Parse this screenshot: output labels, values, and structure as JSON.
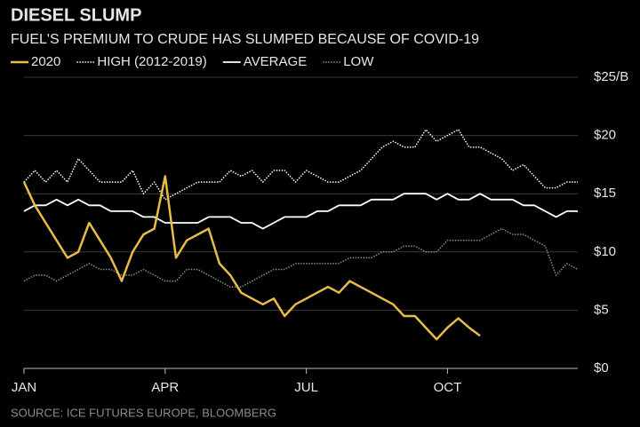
{
  "chart_data": {
    "type": "line",
    "title": "DIESEL SLUMP",
    "subtitle": "FUEL'S PREMIUM  TO CRUDE HAS SLUMPED BECAUSE OF COVID-19",
    "source": "SOURCE: ICE FUTURES EUROPE, BLOOMBERG",
    "categories": [
      "JAN",
      null,
      null,
      null,
      null,
      null,
      null,
      null,
      null,
      null,
      null,
      null,
      null,
      "APR",
      null,
      null,
      null,
      null,
      null,
      null,
      null,
      null,
      null,
      null,
      null,
      null,
      "JUL",
      null,
      null,
      null,
      null,
      null,
      null,
      null,
      null,
      null,
      null,
      null,
      null,
      "OCT",
      null,
      null,
      null,
      null,
      null,
      null,
      null,
      null,
      null,
      null,
      null,
      null
    ],
    "series": [
      {
        "name": "2020",
        "color": "#e8bb4a",
        "style": "solid",
        "width": 2.5,
        "values": [
          16,
          14,
          12.5,
          11,
          9.5,
          10,
          12.5,
          11,
          9.5,
          7.5,
          10,
          11.5,
          12,
          16.5,
          9.5,
          11,
          11.5,
          12,
          9,
          8,
          6.5,
          6,
          5.5,
          6,
          4.5,
          5.5,
          6,
          6.5,
          7,
          6.5,
          7.5,
          7,
          6.5,
          6,
          5.5,
          4.5,
          4.5,
          3.5,
          2.5,
          3.5,
          4.3,
          3.5,
          2.8,
          null,
          null,
          null,
          null,
          null,
          null,
          null,
          null,
          null
        ]
      },
      {
        "name": "HIGH (2012-2019)",
        "color": "#ffffff",
        "style": "dotted",
        "width": 1.5,
        "values": [
          16,
          17,
          16,
          17,
          16,
          18,
          17,
          16,
          16,
          16,
          17,
          15,
          16,
          14.5,
          15,
          15.5,
          16,
          16,
          16,
          17,
          16.5,
          17,
          16,
          17,
          17,
          16,
          17,
          16.5,
          16,
          16,
          16.5,
          17,
          18,
          19,
          19.5,
          19,
          19,
          20.5,
          19.5,
          20,
          20.5,
          19,
          19,
          18.5,
          18,
          17,
          17.5,
          16.5,
          15.5,
          15.5,
          16,
          16
        ]
      },
      {
        "name": "AVERAGE",
        "color": "#ffffff",
        "style": "solid",
        "width": 1.8,
        "values": [
          13.5,
          14,
          14,
          14.5,
          14,
          14.5,
          14,
          14,
          13.5,
          13.5,
          13.5,
          13,
          13,
          12.5,
          12.5,
          12.5,
          12.5,
          13,
          13,
          13,
          12.5,
          12.5,
          12,
          12.5,
          13,
          13,
          13,
          13.5,
          13.5,
          14,
          14,
          14,
          14.5,
          14.5,
          14.5,
          15,
          15,
          15,
          14.5,
          15,
          14.5,
          14.5,
          15,
          14.5,
          14.5,
          14.5,
          14,
          14,
          13.5,
          13,
          13.5,
          13.5
        ]
      },
      {
        "name": "LOW",
        "color": "#8c8c8c",
        "style": "dotted",
        "width": 1.5,
        "values": [
          7.5,
          8,
          8,
          7.5,
          8,
          8.5,
          9,
          8.5,
          8.5,
          8,
          8,
          8.5,
          8,
          7.5,
          7.5,
          8.5,
          8.5,
          8,
          7.5,
          7,
          7,
          7.5,
          8,
          8.5,
          8.5,
          9,
          9,
          9,
          9,
          9,
          9.5,
          9.5,
          9.5,
          10,
          10,
          10.5,
          10.5,
          10,
          10,
          11,
          11,
          11,
          11,
          11.5,
          12,
          11.5,
          11.5,
          11,
          10.5,
          8,
          9,
          8.5
        ]
      }
    ],
    "ylim": [
      0,
      25
    ],
    "yticks": [
      {
        "value": 0,
        "label": "$0"
      },
      {
        "value": 5,
        "label": "$5"
      },
      {
        "value": 10,
        "label": "$10"
      },
      {
        "value": 15,
        "label": "$15"
      },
      {
        "value": 20,
        "label": "$20"
      },
      {
        "value": 25,
        "label": "$25/B"
      }
    ],
    "grid": true,
    "legend": "top"
  }
}
